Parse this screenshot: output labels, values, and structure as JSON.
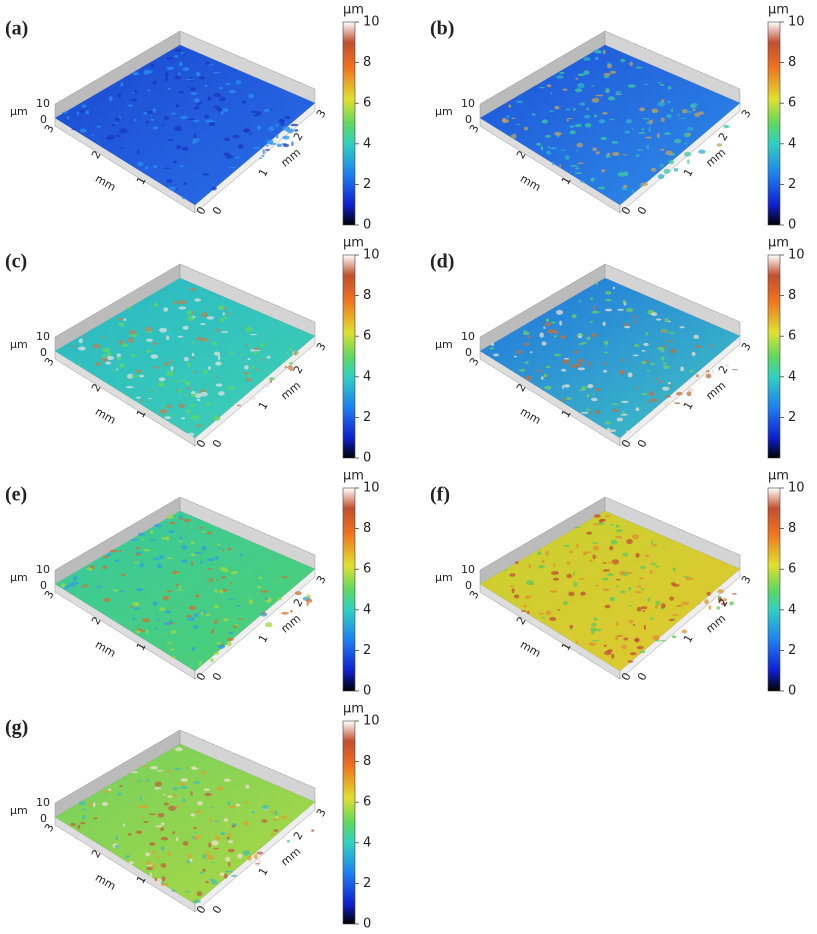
{
  "panels": [
    {
      "label": "(a)",
      "z_unit": "µm",
      "z_ticks": [
        "10",
        "0"
      ],
      "left_ticks": [
        "3",
        "2",
        "1",
        "0"
      ],
      "left_unit": "mm",
      "right_ticks": [
        "0",
        "1",
        "2",
        "3"
      ],
      "right_unit": "mm",
      "colorbar_unit": "µm",
      "colorbar_ticks": [
        "0",
        "2",
        "4",
        "6",
        "8",
        "10"
      ]
    },
    {
      "label": "(b)",
      "z_unit": "µm",
      "z_ticks": [
        "10",
        "0"
      ],
      "left_ticks": [
        "3",
        "2",
        "1",
        "0"
      ],
      "left_unit": "mm",
      "right_ticks": [
        "0",
        "1",
        "2",
        "3"
      ],
      "right_unit": "mm",
      "colorbar_unit": "µm",
      "colorbar_ticks": [
        "0",
        "2",
        "4",
        "6",
        "8",
        "10"
      ]
    },
    {
      "label": "(c)",
      "z_unit": "µm",
      "z_ticks": [
        "10",
        "0"
      ],
      "left_ticks": [
        "3",
        "2",
        "1",
        "0"
      ],
      "left_unit": "mm",
      "right_ticks": [
        "0",
        "1",
        "2",
        "3"
      ],
      "right_unit": "mm",
      "colorbar_unit": "µm",
      "colorbar_ticks": [
        "0",
        "2",
        "4",
        "6",
        "8",
        "10"
      ]
    },
    {
      "label": "(d)",
      "z_unit": "µm",
      "z_ticks": [
        "10",
        "0"
      ],
      "left_ticks": [
        "3",
        "2",
        "1",
        "0"
      ],
      "left_unit": "mm",
      "right_ticks": [
        "0",
        "1",
        "2",
        "3"
      ],
      "right_unit": "mm",
      "colorbar_unit": "µm",
      "colorbar_ticks": [
        "2",
        "4",
        "6",
        "8",
        "10"
      ]
    },
    {
      "label": "(e)",
      "z_unit": "µm",
      "z_ticks": [
        "10",
        "0"
      ],
      "left_ticks": [
        "3",
        "2",
        "1",
        "0"
      ],
      "left_unit": "mm",
      "right_ticks": [
        "0",
        "1",
        "2",
        "3"
      ],
      "right_unit": "mm",
      "colorbar_unit": "µm",
      "colorbar_ticks": [
        "0",
        "2",
        "4",
        "6",
        "8",
        "10"
      ]
    },
    {
      "label": "(f)",
      "z_unit": "µm",
      "z_ticks": [
        "10",
        "0"
      ],
      "left_ticks": [
        "3",
        "2",
        "1",
        "0"
      ],
      "left_unit": "mm",
      "right_ticks": [
        "0",
        "1",
        "2",
        "3"
      ],
      "right_unit": "mm",
      "colorbar_unit": "µm",
      "colorbar_ticks": [
        "0",
        "2",
        "4",
        "6",
        "8",
        "10"
      ]
    },
    {
      "label": "(g)",
      "z_unit": "µm",
      "z_ticks": [
        "10",
        "0"
      ],
      "left_ticks": [
        "3",
        "2",
        "1",
        "0"
      ],
      "left_unit": "mm",
      "right_ticks": [
        "0",
        "1",
        "2",
        "3"
      ],
      "right_unit": "mm",
      "colorbar_unit": "µm",
      "colorbar_ticks": [
        "0",
        "2",
        "4",
        "6",
        "8",
        "10"
      ]
    }
  ]
}
